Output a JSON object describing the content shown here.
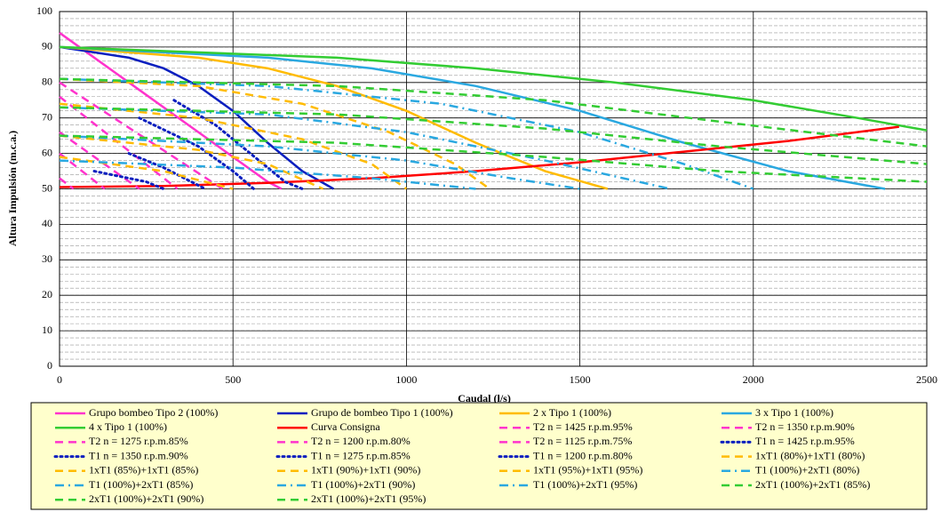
{
  "chart_data": {
    "type": "line",
    "x_label": "Caudal  (l/s)",
    "y_label": "Altura Impulsión  (m.c.a.)",
    "xlim": [
      0,
      2500
    ],
    "xticks": [
      0,
      500,
      1000,
      1500,
      2000,
      2500
    ],
    "ylim": [
      0,
      100
    ],
    "yticks": [
      0,
      10,
      20,
      30,
      40,
      50,
      60,
      70,
      80,
      90,
      100
    ],
    "grid": true,
    "minor_grid_step": 2,
    "legend": "bottom",
    "series": [
      {
        "name": "Grupo bombeo Tipo 2 (100%)",
        "color": "#ff33cc",
        "style": "solid",
        "x": [
          0,
          200,
          400,
          600,
          640
        ],
        "values": [
          94,
          80,
          66,
          52,
          50
        ]
      },
      {
        "name": "Grupo de bombeo Tipo 1 (100%)",
        "color": "#0a1fbf",
        "style": "solid",
        "x": [
          0,
          200,
          300,
          400,
          500,
          600,
          700,
          790
        ],
        "values": [
          90,
          87,
          84,
          79,
          72,
          63,
          55,
          50
        ]
      },
      {
        "name": "2  x Tipo 1 (100%)",
        "color": "#ffbb00",
        "style": "solid",
        "x": [
          0,
          400,
          600,
          800,
          1000,
          1200,
          1400,
          1580
        ],
        "values": [
          90,
          87,
          84,
          79,
          72,
          63,
          55,
          50
        ]
      },
      {
        "name": "3  x Tipo 1 (100%)",
        "color": "#2aa8e0",
        "style": "solid",
        "x": [
          0,
          600,
          900,
          1200,
          1500,
          1800,
          2100,
          2380
        ],
        "values": [
          90,
          87,
          84,
          79,
          72,
          63,
          55,
          50
        ]
      },
      {
        "name": "4  x Tipo 1 (100%)",
        "color": "#33cc33",
        "style": "solid",
        "x": [
          0,
          800,
          1200,
          1600,
          2000,
          2300,
          2500
        ],
        "values": [
          90,
          87,
          84,
          80,
          75,
          70,
          66.5
        ]
      },
      {
        "name": "Curva Consigna",
        "color": "#ff0000",
        "style": "solid",
        "x": [
          0,
          300,
          600,
          900,
          1200,
          1500,
          1800,
          2100,
          2420
        ],
        "values": [
          50.5,
          50.8,
          51.7,
          53,
          55,
          57.5,
          60.5,
          63.5,
          67.5
        ]
      },
      {
        "name": "T2 n = 1425 r.p.m.95%",
        "color": "#ff33cc",
        "style": "dash",
        "x": [
          0,
          470
        ],
        "values": [
          80,
          50
        ]
      },
      {
        "name": "T2 n = 1350 r.p.m.90%",
        "color": "#ff33cc",
        "style": "dash",
        "x": [
          0,
          340
        ],
        "values": [
          76,
          50
        ]
      },
      {
        "name": "T2 n = 1275 r.p.m.85%",
        "color": "#ff33cc",
        "style": "dash",
        "x": [
          0,
          230
        ],
        "values": [
          66,
          50
        ]
      },
      {
        "name": "T2 n = 1200 r.p.m.80%",
        "color": "#ff33cc",
        "style": "dash",
        "x": [
          0,
          130
        ],
        "values": [
          60,
          50
        ]
      },
      {
        "name": "T2 n = 1125 r.p.m.75%",
        "color": "#ff33cc",
        "style": "dash",
        "x": [
          0,
          40
        ],
        "values": [
          53,
          50
        ]
      },
      {
        "name": "T1 n = 1425 r.p.m.95%",
        "color": "#0a1fbf",
        "style": "dot",
        "x": [
          330,
          450,
          550,
          650,
          700
        ],
        "values": [
          75,
          68,
          60,
          52,
          50
        ]
      },
      {
        "name": "T1 n = 1350 r.p.m.90%",
        "color": "#0a1fbf",
        "style": "dot",
        "x": [
          230,
          400,
          500,
          560
        ],
        "values": [
          70,
          62,
          55,
          50
        ]
      },
      {
        "name": "T1 n = 1275 r.p.m.85%",
        "color": "#0a1fbf",
        "style": "dot",
        "x": [
          200,
          300,
          380,
          420
        ],
        "values": [
          60,
          56,
          52,
          50
        ]
      },
      {
        "name": "T1 n = 1200 r.p.m.80%",
        "color": "#0a1fbf",
        "style": "dot",
        "x": [
          100,
          250,
          300
        ],
        "values": [
          55,
          52,
          50
        ]
      },
      {
        "name": "1xT1 (80%)+1xT1 (80%)",
        "color": "#ffbb00",
        "style": "dash",
        "x": [
          0,
          300,
          500
        ],
        "values": [
          59,
          55,
          50
        ]
      },
      {
        "name": "1xT1 (85%)+1xT1 (85%)",
        "color": "#ffbb00",
        "style": "dash",
        "x": [
          0,
          400,
          600,
          760
        ],
        "values": [
          65,
          61,
          57,
          50
        ]
      },
      {
        "name": "1xT1 (90%)+1xT1 (90%)",
        "color": "#ffbb00",
        "style": "dash",
        "x": [
          0,
          400,
          700,
          900,
          1000
        ],
        "values": [
          74,
          70,
          64,
          57,
          50
        ]
      },
      {
        "name": "1xT1 (95%)+1xT1 (95%)",
        "color": "#ffbb00",
        "style": "dash",
        "x": [
          0,
          400,
          700,
          950,
          1140,
          1240
        ],
        "values": [
          81,
          79,
          74,
          66,
          57,
          50
        ]
      },
      {
        "name": "T1 (100%)+2xT1 (80%)",
        "color": "#2aa8e0",
        "style": "dashdot",
        "x": [
          0,
          500,
          900,
          1200
        ],
        "values": [
          58,
          56,
          53,
          50
        ]
      },
      {
        "name": "T1 (100%)+2xT1 (85%)",
        "color": "#2aa8e0",
        "style": "dashdot",
        "x": [
          0,
          600,
          1000,
          1300,
          1500
        ],
        "values": [
          65,
          62,
          58,
          53,
          50
        ]
      },
      {
        "name": "T1 (100%)+2xT1 (90%)",
        "color": "#2aa8e0",
        "style": "dashdot",
        "x": [
          0,
          600,
          1000,
          1400,
          1760
        ],
        "values": [
          73,
          71,
          66,
          58,
          50
        ]
      },
      {
        "name": "T1 (100%)+2xT1 (95%)",
        "color": "#2aa8e0",
        "style": "dashdot",
        "x": [
          0,
          600,
          1100,
          1500,
          1800,
          2000
        ],
        "values": [
          81,
          79,
          74,
          66,
          57,
          50
        ]
      },
      {
        "name": "2xT1 (100%)+2xT1 (85%)",
        "color": "#33cc33",
        "style": "dash",
        "x": [
          0,
          800,
          1400,
          1900,
          2500
        ],
        "values": [
          65,
          63,
          59,
          55,
          52
        ]
      },
      {
        "name": "2xT1 (100%)+2xT1 (90%)",
        "color": "#33cc33",
        "style": "dash",
        "x": [
          0,
          800,
          1400,
          1900,
          2500
        ],
        "values": [
          73,
          71,
          67,
          62,
          57
        ]
      },
      {
        "name": "2xT1 (100%)+2xT1 (95%)",
        "color": "#33cc33",
        "style": "dash",
        "x": [
          0,
          800,
          1400,
          1900,
          2500
        ],
        "values": [
          81,
          79,
          75,
          69,
          62
        ]
      }
    ]
  }
}
